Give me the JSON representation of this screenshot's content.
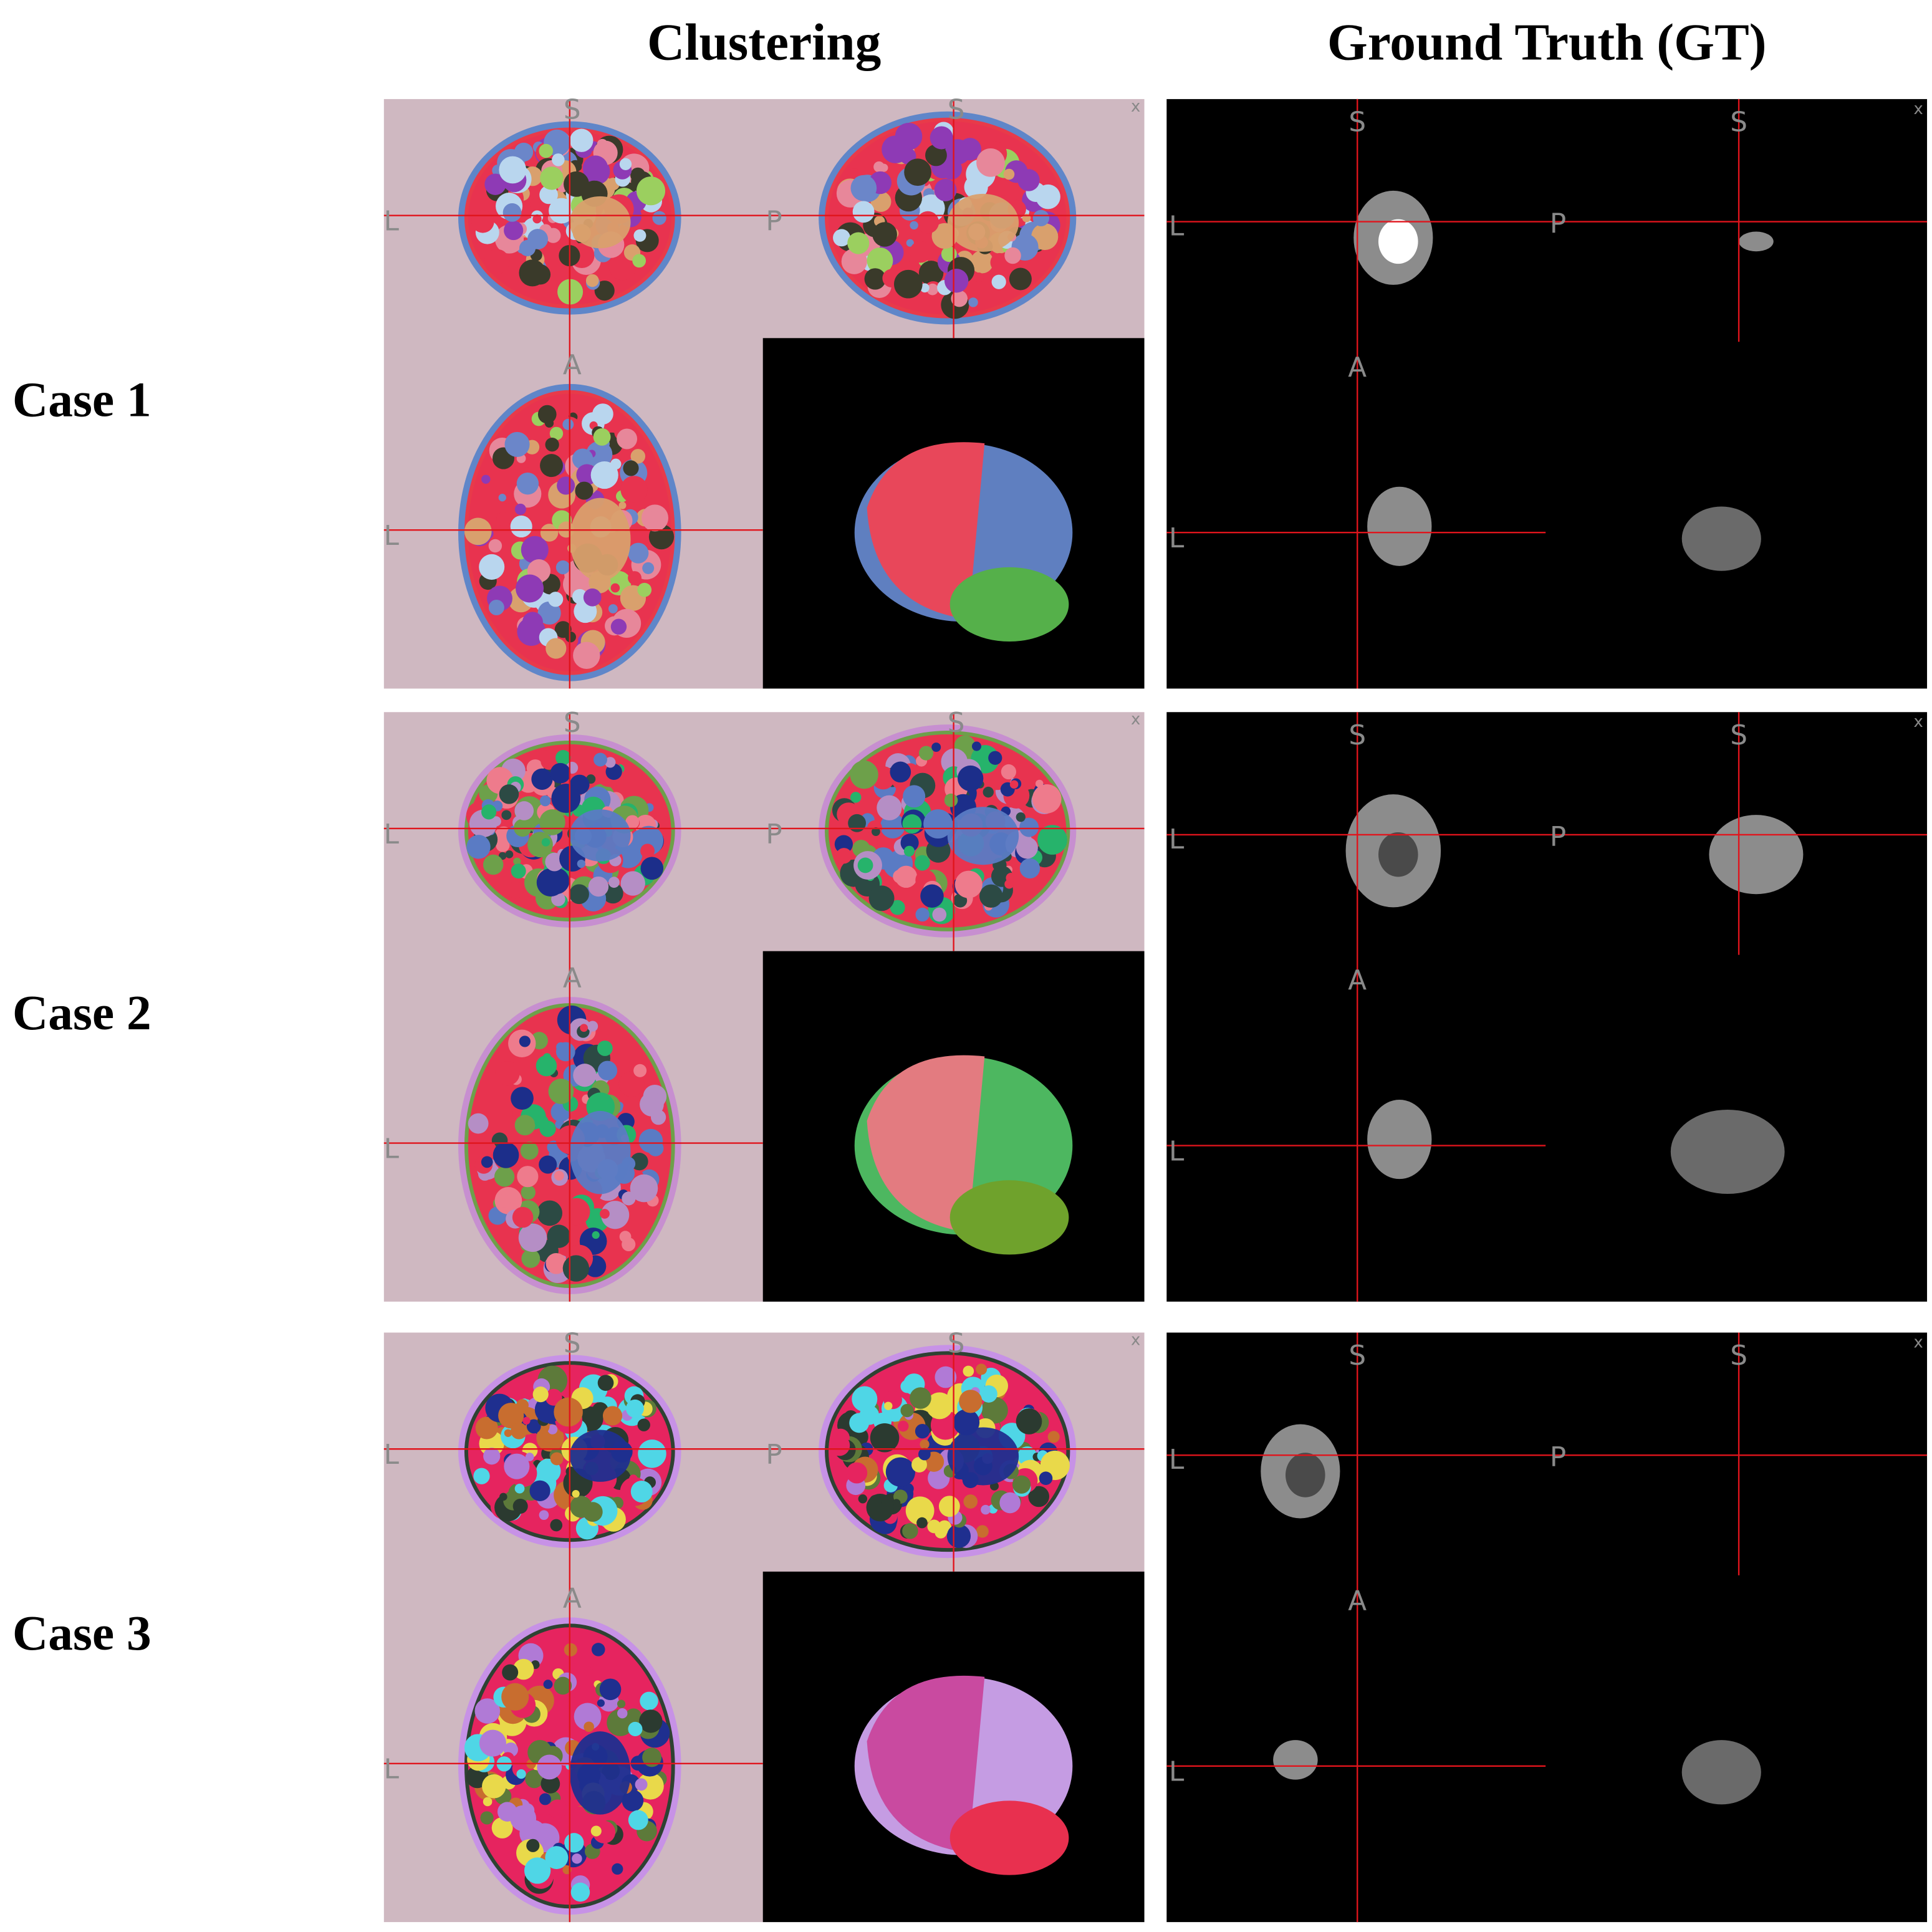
{
  "header": {
    "left": "Clustering",
    "right": "Ground Truth (GT)"
  },
  "rows": [
    {
      "label": "Case 1"
    },
    {
      "label": "Case 2"
    },
    {
      "label": "Case 3"
    }
  ],
  "viewer": {
    "superior": "S",
    "posterior": "P",
    "left": "L",
    "anterior": "A",
    "close": "x"
  }
}
